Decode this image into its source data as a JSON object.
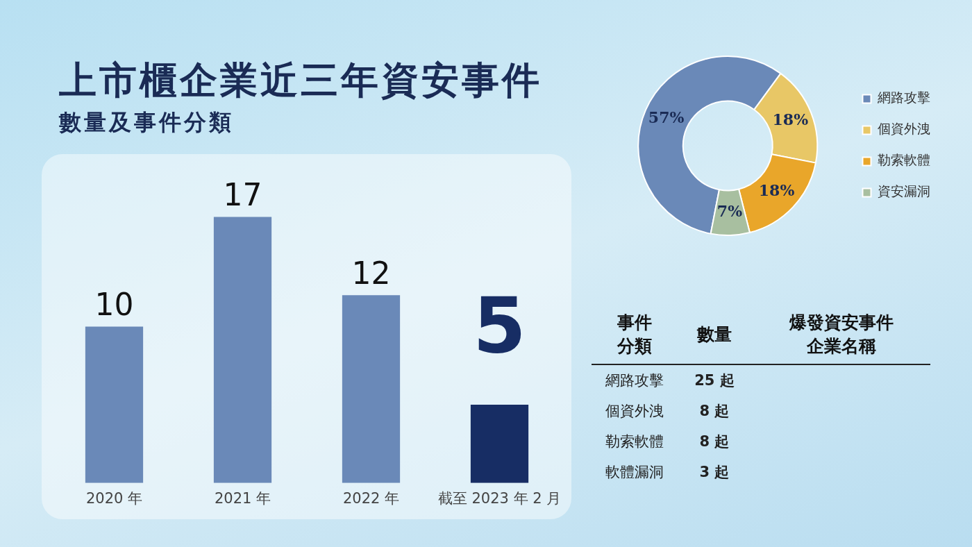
{
  "chart_data": [
    {
      "type": "bar",
      "title": "上市櫃企業近三年資安事件",
      "subtitle": "數量及事件分類",
      "categories": [
        "2020 年",
        "2021 年",
        "2022 年",
        "截至 2023 年 2 月"
      ],
      "values": [
        10,
        17,
        12,
        5
      ],
      "colors": [
        "#6a89b8",
        "#6a89b8",
        "#6a89b8",
        "#172d64"
      ],
      "data_labels": true,
      "grid": false,
      "legend": false
    },
    {
      "type": "donut",
      "categories": [
        "網路攻擊",
        "個資外洩",
        "勒索軟體",
        "資安漏洞"
      ],
      "values": [
        57,
        18,
        18,
        7
      ],
      "colors": [
        "#6a89b8",
        "#e8c766",
        "#e9a62a",
        "#a8bfa0"
      ],
      "value_labels": [
        "57%",
        "18%",
        "18%",
        "7%"
      ],
      "legend": "right"
    },
    {
      "type": "other",
      "annotations": [
        "事件分類",
        "數量",
        "爆發資安事件企業名稱",
        "25 起",
        "8 起",
        "8 起",
        "3 起"
      ],
      "categories": [
        "網路攻擊",
        "個資外洩",
        "勒索軟體",
        "軟體漏洞"
      ]
    }
  ]
}
